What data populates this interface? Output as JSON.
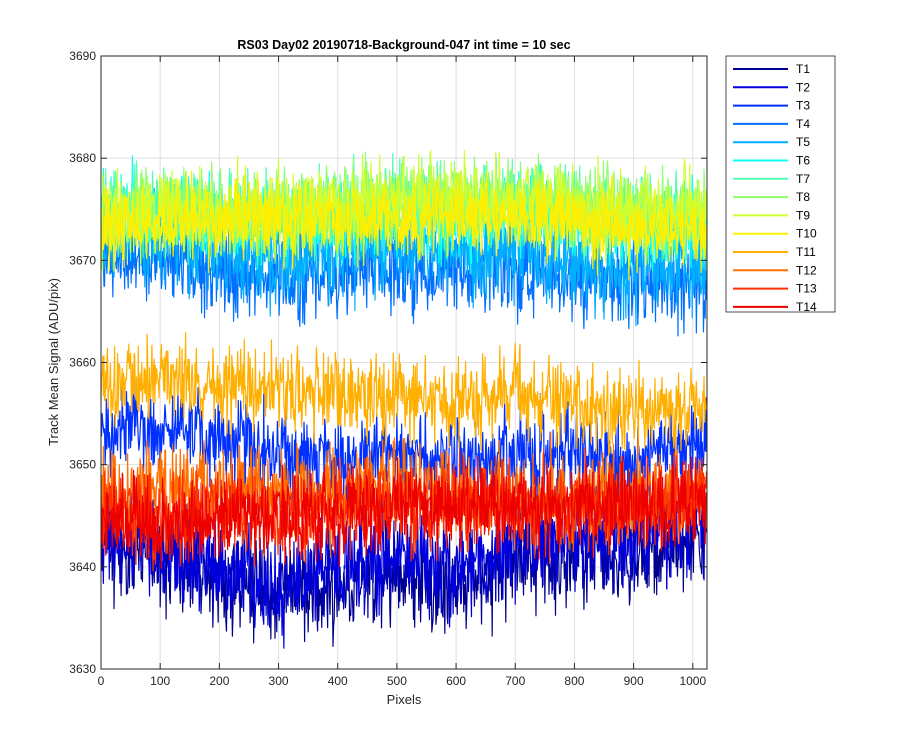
{
  "chart_data": {
    "type": "line",
    "title": "RS03 Day02 20190718-Background-047 int time = 10 sec",
    "xlabel": "Pixels",
    "ylabel": "Track Mean Signal (ADU/pix)",
    "xlim": [
      0,
      1024
    ],
    "ylim": [
      3630,
      3690
    ],
    "xticks": [
      0,
      100,
      200,
      300,
      400,
      500,
      600,
      700,
      800,
      900,
      1000
    ],
    "yticks": [
      3630,
      3640,
      3650,
      3660,
      3670,
      3680,
      3690
    ],
    "grid": true,
    "legend_position": "outside-top-right",
    "x_points": 1024,
    "series": [
      {
        "name": "T1",
        "color": "#00008F",
        "noise": 2.4,
        "x": [
          0,
          100,
          200,
          300,
          400,
          500,
          600,
          700,
          800,
          900,
          1024
        ],
        "y": [
          3642,
          3641,
          3639,
          3637,
          3638,
          3639,
          3638,
          3640,
          3641,
          3641,
          3643
        ]
      },
      {
        "name": "T2",
        "color": "#0000DF",
        "noise": 2.4,
        "x": [
          0,
          100,
          200,
          300,
          400,
          500,
          600,
          700,
          800,
          900,
          1024
        ],
        "y": [
          3643,
          3642,
          3640,
          3638,
          3640,
          3641,
          3640,
          3642,
          3643,
          3643,
          3645
        ]
      },
      {
        "name": "T3",
        "color": "#0030FF",
        "noise": 2.2,
        "x": [
          0,
          100,
          200,
          300,
          400,
          500,
          600,
          700,
          800,
          900,
          1024
        ],
        "y": [
          3653,
          3654,
          3653,
          3651,
          3650,
          3651,
          3650,
          3651,
          3651,
          3650,
          3652
        ]
      },
      {
        "name": "T4",
        "color": "#0070FF",
        "noise": 2.1,
        "x": [
          0,
          100,
          200,
          300,
          400,
          500,
          600,
          700,
          800,
          900,
          1024
        ],
        "y": [
          3671,
          3670,
          3669,
          3668,
          3669,
          3669,
          3669,
          3669,
          3668,
          3668,
          3668
        ]
      },
      {
        "name": "T5",
        "color": "#00AFFF",
        "noise": 2.1,
        "x": [
          0,
          100,
          200,
          300,
          400,
          500,
          600,
          700,
          800,
          900,
          1024
        ],
        "y": [
          3672,
          3672,
          3671,
          3670,
          3671,
          3671,
          3671,
          3671,
          3670,
          3669,
          3670
        ]
      },
      {
        "name": "T6",
        "color": "#10FFEF",
        "noise": 2.0,
        "x": [
          0,
          100,
          200,
          300,
          400,
          500,
          600,
          700,
          800,
          900,
          1024
        ],
        "y": [
          3675,
          3675,
          3674,
          3674,
          3674,
          3674,
          3674,
          3675,
          3674,
          3673,
          3674
        ]
      },
      {
        "name": "T7",
        "color": "#50FFAF",
        "noise": 2.0,
        "x": [
          0,
          100,
          200,
          300,
          400,
          500,
          600,
          700,
          800,
          900,
          1024
        ],
        "y": [
          3675,
          3675,
          3675,
          3674,
          3675,
          3675,
          3675,
          3675,
          3675,
          3674,
          3674
        ]
      },
      {
        "name": "T8",
        "color": "#8FFF70",
        "noise": 2.0,
        "x": [
          0,
          100,
          200,
          300,
          400,
          500,
          600,
          700,
          800,
          900,
          1024
        ],
        "y": [
          3674,
          3675,
          3675,
          3675,
          3675,
          3676,
          3676,
          3676,
          3675,
          3675,
          3675
        ]
      },
      {
        "name": "T9",
        "color": "#CFFF30",
        "noise": 2.0,
        "x": [
          0,
          100,
          200,
          300,
          400,
          500,
          600,
          700,
          800,
          900,
          1024
        ],
        "y": [
          3674,
          3675,
          3675,
          3675,
          3675,
          3676,
          3676,
          3676,
          3675,
          3675,
          3675
        ]
      },
      {
        "name": "T10",
        "color": "#FFEF00",
        "noise": 1.9,
        "x": [
          0,
          100,
          200,
          300,
          400,
          500,
          600,
          700,
          800,
          900,
          1024
        ],
        "y": [
          3673,
          3674,
          3674,
          3674,
          3674,
          3674,
          3674,
          3674,
          3674,
          3673,
          3673
        ]
      },
      {
        "name": "T11",
        "color": "#FFAF00",
        "noise": 2.0,
        "x": [
          0,
          100,
          200,
          300,
          400,
          500,
          600,
          700,
          800,
          900,
          1024
        ],
        "y": [
          3658,
          3658,
          3658,
          3657,
          3657,
          3657,
          3656,
          3657,
          3656,
          3655,
          3656
        ]
      },
      {
        "name": "T12",
        "color": "#FF7000",
        "noise": 2.2,
        "x": [
          0,
          100,
          200,
          300,
          400,
          500,
          600,
          700,
          800,
          900,
          1024
        ],
        "y": [
          3647,
          3647,
          3648,
          3647,
          3647,
          3648,
          3647,
          3647,
          3647,
          3647,
          3647
        ]
      },
      {
        "name": "T13",
        "color": "#FF3000",
        "noise": 2.2,
        "x": [
          0,
          100,
          200,
          300,
          400,
          500,
          600,
          700,
          800,
          900,
          1024
        ],
        "y": [
          3646,
          3645,
          3646,
          3645,
          3646,
          3646,
          3646,
          3646,
          3646,
          3646,
          3647
        ]
      },
      {
        "name": "T14",
        "color": "#EF0000",
        "noise": 2.0,
        "x": [
          0,
          100,
          200,
          300,
          400,
          500,
          600,
          700,
          800,
          900,
          1024
        ],
        "y": [
          3645,
          3644,
          3645,
          3645,
          3645,
          3646,
          3646,
          3646,
          3646,
          3646,
          3646
        ]
      }
    ]
  }
}
